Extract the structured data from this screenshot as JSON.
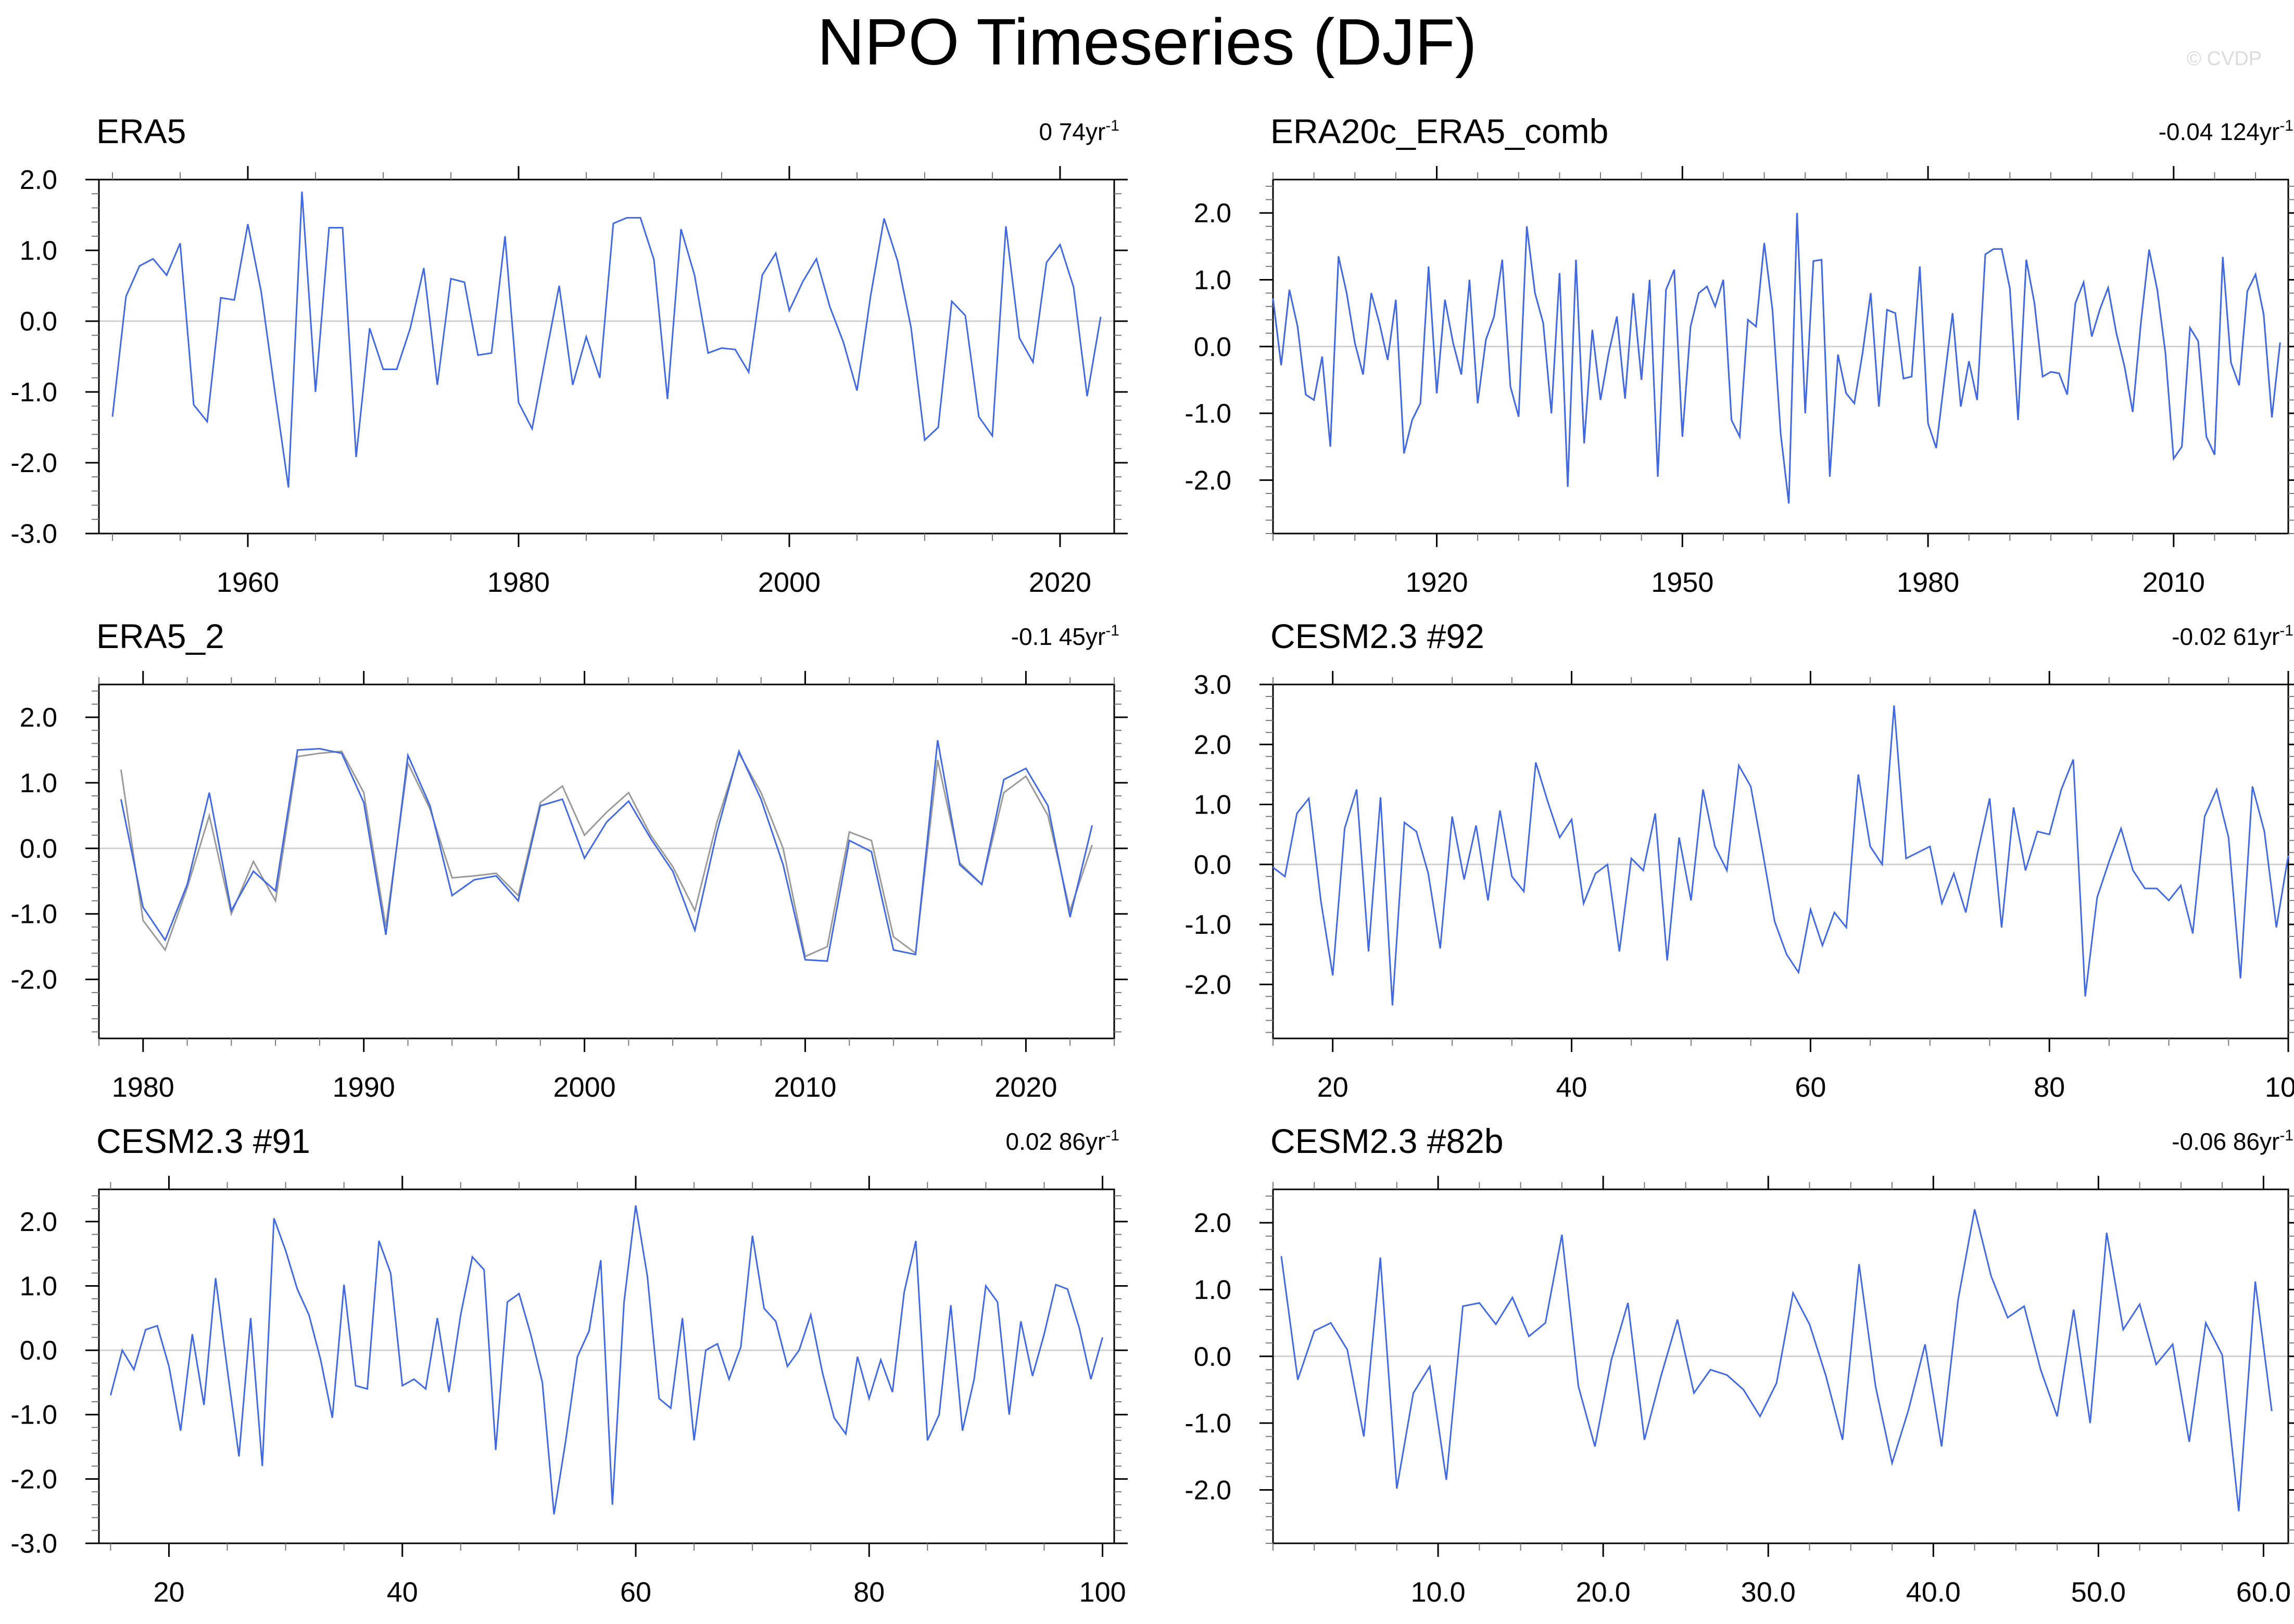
{
  "figure": {
    "title": "NPO Timeseries (DJF)",
    "watermark": "© CVDP",
    "colors": {
      "primary": "#4169e1",
      "secondary": "#9a9a9a",
      "zero_line": "#d0d0d0",
      "axis": "#000000"
    }
  },
  "chart_data": [
    {
      "type": "line",
      "title": "ERA5",
      "trend_label": "0 74yr",
      "trend_sup": "-1",
      "xlim": [
        1949,
        2024
      ],
      "ylim": [
        -3.0,
        2.0
      ],
      "ymajor": [
        2.0,
        1.0,
        0.0,
        -1.0,
        -2.0,
        -3.0
      ],
      "yminor_step": 0.2,
      "xticks": [
        1960,
        1980,
        2000,
        2020
      ],
      "xtick_labels": [
        "1960",
        "1980",
        "2000",
        "2020"
      ],
      "xminor_step": 5,
      "x_start": 1950,
      "x_step": 1,
      "series": [
        {
          "name": "primary",
          "values": [
            -1.35,
            0.35,
            0.78,
            0.88,
            0.65,
            1.1,
            -1.18,
            -1.42,
            0.33,
            0.3,
            1.37,
            0.4,
            -1.0,
            -2.35,
            1.83,
            -1.0,
            1.32,
            1.32,
            -1.92,
            -0.1,
            -0.68,
            -0.68,
            -0.1,
            0.75,
            -0.9,
            0.6,
            0.55,
            -0.48,
            -0.45,
            1.2,
            -1.15,
            -1.52,
            -0.5,
            0.5,
            -0.9,
            -0.22,
            -0.8,
            1.38,
            1.46,
            1.46,
            0.87,
            -1.1,
            1.3,
            0.65,
            -0.45,
            -0.38,
            -0.4,
            -0.72,
            0.65,
            0.96,
            0.15,
            0.56,
            0.88,
            0.2,
            -0.3,
            -0.98,
            0.35,
            1.45,
            0.85,
            -0.1,
            -1.68,
            -1.5,
            0.28,
            0.08,
            -1.35,
            -1.62,
            1.34,
            -0.24,
            -0.58,
            0.83,
            1.08,
            0.48,
            -1.06,
            0.06
          ]
        }
      ]
    },
    {
      "type": "line",
      "title": "ERA20c_ERA5_comb",
      "trend_label": "-0.04 124yr",
      "trend_sup": "-1",
      "xlim": [
        1900,
        2024
      ],
      "ylim": [
        -2.8,
        2.5
      ],
      "ymajor": [
        2.0,
        1.0,
        0.0,
        -1.0,
        -2.0
      ],
      "yminor_step": 0.2,
      "xticks": [
        1920,
        1950,
        1980,
        2010
      ],
      "xtick_labels": [
        "1920",
        "1950",
        "1980",
        "2010"
      ],
      "xminor_step": 5,
      "x_start": 1900,
      "x_step": 1,
      "series": [
        {
          "name": "secondary",
          "values": [
            0.72,
            -0.28,
            0.85,
            0.3,
            -0.72,
            -0.8,
            -0.15,
            -1.5,
            1.35,
            0.8,
            0.05,
            -0.42,
            0.8,
            0.35,
            -0.2,
            0.7,
            -1.6,
            -1.1,
            -0.85,
            1.2,
            -0.7,
            0.7,
            0.05,
            -0.42,
            1.0,
            -0.85,
            0.1,
            0.45,
            1.3,
            -0.6,
            -1.05,
            1.8,
            0.8,
            0.35,
            -1.0,
            1.1,
            -2.1,
            1.3,
            -1.45,
            0.25,
            -0.8,
            -0.1,
            0.45,
            -0.78,
            0.8,
            -0.5,
            1.0,
            -1.95,
            0.85,
            1.15,
            -1.35,
            0.3,
            0.8,
            0.9,
            0.6,
            1.0,
            -1.1,
            -1.35,
            0.4,
            0.3,
            1.55,
            0.55,
            -1.3,
            -2.35,
            2.0,
            -1.0,
            1.28,
            1.3,
            -1.95,
            -0.12,
            -0.7,
            -0.85,
            -0.1,
            0.8,
            -0.9,
            0.55,
            0.5,
            -0.48,
            -0.45,
            1.2,
            -1.15,
            -1.52,
            -0.5,
            0.5,
            -0.9,
            -0.22,
            -0.8,
            1.38,
            1.46,
            1.46,
            0.87,
            -1.1,
            1.3,
            0.65,
            -0.45,
            -0.38,
            -0.4,
            -0.72,
            0.65,
            0.96,
            0.15,
            0.56,
            0.88,
            0.2,
            -0.3,
            -0.98,
            0.35,
            1.45,
            0.85,
            -0.1,
            -1.68,
            -1.5,
            0.28,
            0.08,
            -1.35,
            -1.62,
            1.34,
            -0.24,
            -0.58,
            0.83,
            1.08,
            0.48,
            -1.06,
            0.06
          ]
        },
        {
          "name": "primary",
          "values": [
            0.72,
            -0.28,
            0.85,
            0.3,
            -0.72,
            -0.8,
            -0.15,
            -1.5,
            1.35,
            0.8,
            0.05,
            -0.42,
            0.8,
            0.35,
            -0.2,
            0.7,
            -1.6,
            -1.1,
            -0.85,
            1.2,
            -0.7,
            0.7,
            0.05,
            -0.42,
            1.0,
            -0.85,
            0.1,
            0.45,
            1.3,
            -0.6,
            -1.05,
            1.8,
            0.8,
            0.35,
            -1.0,
            1.1,
            -2.1,
            1.3,
            -1.45,
            0.25,
            -0.8,
            -0.1,
            0.45,
            -0.78,
            0.8,
            -0.5,
            1.0,
            -1.95,
            0.85,
            1.15,
            -1.35,
            0.3,
            0.8,
            0.9,
            0.6,
            1.0,
            -1.1,
            -1.35,
            0.4,
            0.3,
            1.55,
            0.55,
            -1.3,
            -2.35,
            2.0,
            -1.0,
            1.28,
            1.3,
            -1.95,
            -0.12,
            -0.7,
            -0.85,
            -0.1,
            0.8,
            -0.9,
            0.55,
            0.5,
            -0.48,
            -0.45,
            1.2,
            -1.15,
            -1.52,
            -0.5,
            0.5,
            -0.9,
            -0.22,
            -0.8,
            1.38,
            1.46,
            1.46,
            0.87,
            -1.1,
            1.3,
            0.65,
            -0.45,
            -0.38,
            -0.4,
            -0.72,
            0.65,
            0.96,
            0.15,
            0.56,
            0.88,
            0.2,
            -0.3,
            -0.98,
            0.35,
            1.45,
            0.85,
            -0.1,
            -1.68,
            -1.5,
            0.28,
            0.08,
            -1.35,
            -1.62,
            1.34,
            -0.24,
            -0.58,
            0.83,
            1.08,
            0.48,
            -1.06,
            0.06
          ]
        }
      ]
    },
    {
      "type": "line",
      "title": "ERA5_2",
      "trend_label": "-0.1 45yr",
      "trend_sup": "-1",
      "xlim": [
        1978,
        2024
      ],
      "ylim": [
        -2.9,
        2.5
      ],
      "ymajor": [
        2.0,
        1.0,
        0.0,
        -1.0,
        -2.0
      ],
      "yminor_step": 0.2,
      "xticks": [
        1980,
        1990,
        2000,
        2010,
        2020
      ],
      "xtick_labels": [
        "1980",
        "1990",
        "2000",
        "2010",
        "2020"
      ],
      "xminor_step": 2,
      "x_start": 1979,
      "x_step": 1,
      "series": [
        {
          "name": "secondary",
          "values": [
            1.2,
            -1.1,
            -1.55,
            -0.6,
            0.5,
            -1.0,
            -0.2,
            -0.8,
            1.4,
            1.45,
            1.48,
            0.85,
            -1.2,
            1.3,
            0.6,
            -0.45,
            -0.42,
            -0.38,
            -0.72,
            0.7,
            0.95,
            0.2,
            0.55,
            0.85,
            0.2,
            -0.28,
            -0.95,
            0.4,
            1.45,
            0.85,
            0.0,
            -1.65,
            -1.5,
            0.25,
            0.12,
            -1.35,
            -1.6,
            1.35,
            -0.22,
            -0.55,
            0.85,
            1.1,
            0.5,
            -0.95,
            0.05
          ]
        },
        {
          "name": "primary",
          "values": [
            0.75,
            -0.9,
            -1.4,
            -0.55,
            0.85,
            -0.95,
            -0.35,
            -0.65,
            1.5,
            1.52,
            1.45,
            0.7,
            -1.32,
            1.42,
            0.65,
            -0.72,
            -0.48,
            -0.42,
            -0.8,
            0.65,
            0.75,
            -0.15,
            0.4,
            0.72,
            0.15,
            -0.35,
            -1.25,
            0.25,
            1.48,
            0.75,
            -0.25,
            -1.7,
            -1.72,
            0.12,
            -0.05,
            -1.55,
            -1.62,
            1.65,
            -0.25,
            -0.55,
            1.05,
            1.22,
            0.65,
            -1.05,
            0.35
          ]
        }
      ]
    },
    {
      "type": "line",
      "title": "CESM2.3 #92",
      "trend_label": "-0.02 61yr",
      "trend_sup": "-1",
      "xlim": [
        15,
        100
      ],
      "ylim": [
        -2.9,
        3.0
      ],
      "ymajor": [
        3.0,
        2.0,
        1.0,
        0.0,
        -1.0,
        -2.0
      ],
      "yminor_step": 0.2,
      "xticks": [
        20,
        40,
        60,
        80,
        100
      ],
      "xtick_labels": [
        "20",
        "40",
        "60",
        "80",
        "100"
      ],
      "xminor_step": 5,
      "x_start": 15,
      "x_step": 1,
      "series": [
        {
          "name": "primary",
          "values": [
            -0.05,
            -0.2,
            0.85,
            1.1,
            -0.6,
            -1.85,
            0.6,
            1.25,
            -1.45,
            1.12,
            -2.35,
            0.7,
            0.55,
            -0.15,
            -1.4,
            0.8,
            -0.25,
            0.65,
            -0.6,
            0.9,
            -0.2,
            -0.45,
            1.7,
            1.05,
            0.45,
            0.75,
            -0.65,
            -0.15,
            0.0,
            -1.45,
            0.1,
            -0.1,
            0.85,
            -1.6,
            0.45,
            -0.6,
            1.25,
            0.3,
            -0.1,
            1.65,
            1.3,
            0.2,
            -0.95,
            -1.5,
            -1.8,
            -0.75,
            -1.35,
            -0.8,
            -1.05,
            1.5,
            0.3,
            0.0,
            2.65,
            0.1,
            0.2,
            0.3,
            -0.65,
            -0.15,
            -0.8,
            0.2,
            1.1,
            -1.05,
            0.95,
            -0.1,
            0.55,
            0.5,
            1.25,
            1.75,
            -2.2,
            -0.55,
            0.05,
            0.6,
            -0.1,
            -0.4,
            -0.4,
            -0.6,
            -0.35,
            -1.15,
            0.8,
            1.25,
            0.45,
            -1.9,
            1.3,
            0.55,
            -1.05,
            0.15
          ]
        }
      ]
    },
    {
      "type": "line",
      "title": "CESM2.3 #91",
      "trend_label": "0.02 86yr",
      "trend_sup": "-1",
      "xlim": [
        14,
        101
      ],
      "ylim": [
        -3.0,
        2.5
      ],
      "ymajor": [
        2.0,
        1.0,
        0.0,
        -1.0,
        -2.0,
        -3.0
      ],
      "yminor_step": 0.2,
      "xticks": [
        20,
        40,
        60,
        80,
        100
      ],
      "xtick_labels": [
        "20",
        "40",
        "60",
        "80",
        "100"
      ],
      "xminor_step": 5,
      "x_start": 15,
      "x_step": 1,
      "series": [
        {
          "name": "primary",
          "values": [
            -0.7,
            0.0,
            -0.3,
            0.32,
            0.38,
            -0.25,
            -1.25,
            0.25,
            -0.85,
            1.12,
            -0.3,
            -1.65,
            0.5,
            -1.8,
            2.05,
            1.55,
            0.95,
            0.55,
            -0.15,
            -1.05,
            1.02,
            -0.55,
            -0.6,
            1.7,
            1.2,
            -0.55,
            -0.45,
            -0.6,
            0.5,
            -0.65,
            0.55,
            1.45,
            1.25,
            -1.55,
            0.75,
            0.88,
            0.25,
            -0.5,
            -2.55,
            -1.4,
            -0.1,
            0.3,
            1.4,
            -2.4,
            0.75,
            2.25,
            1.15,
            -0.75,
            -0.9,
            0.5,
            -1.4,
            0.0,
            0.1,
            -0.45,
            0.05,
            1.78,
            0.65,
            0.45,
            -0.25,
            0.0,
            0.55,
            -0.35,
            -1.05,
            -1.3,
            -0.1,
            -0.75,
            -0.15,
            -0.65,
            0.9,
            1.7,
            -1.4,
            -1.0,
            0.7,
            -1.25,
            -0.45,
            1.0,
            0.75,
            -1.0,
            0.45,
            -0.4,
            0.25,
            1.02,
            0.95,
            0.35,
            -0.45,
            0.2
          ]
        }
      ]
    },
    {
      "type": "line",
      "title": "CESM2.3 #82b",
      "trend_label": "-0.06 86yr",
      "trend_sup": "-1",
      "xlim": [
        0,
        61.5
      ],
      "ylim": [
        -2.8,
        2.5
      ],
      "ymajor": [
        2.0,
        1.0,
        0.0,
        -1.0,
        -2.0
      ],
      "yminor_step": 0.2,
      "xticks": [
        10,
        20,
        30,
        40,
        50,
        60
      ],
      "xtick_labels": [
        "10.0",
        "20.0",
        "30.0",
        "40.0",
        "50.0",
        "60.0"
      ],
      "xminor_step": 2.5,
      "x_start": 0.5,
      "x_step": 1,
      "series": [
        {
          "name": "primary",
          "values": [
            1.5,
            -0.35,
            0.38,
            0.5,
            0.1,
            -1.2,
            1.48,
            -1.98,
            -0.55,
            -0.15,
            -1.85,
            0.75,
            0.8,
            0.48,
            0.88,
            0.3,
            0.5,
            1.82,
            -0.45,
            -1.35,
            -0.05,
            0.8,
            -1.25,
            -0.3,
            0.55,
            -0.55,
            -0.2,
            -0.28,
            -0.5,
            -0.9,
            -0.4,
            0.95,
            0.48,
            -0.3,
            -1.25,
            1.38,
            -0.45,
            -1.6,
            -0.8,
            0.18,
            -1.35,
            0.85,
            2.2,
            1.2,
            0.58,
            0.75,
            -0.2,
            -0.9,
            0.7,
            -1.0,
            1.85,
            0.4,
            0.78,
            -0.12,
            0.18,
            -1.28,
            0.5,
            0.02,
            -2.32,
            1.12,
            -0.82
          ]
        }
      ]
    }
  ]
}
